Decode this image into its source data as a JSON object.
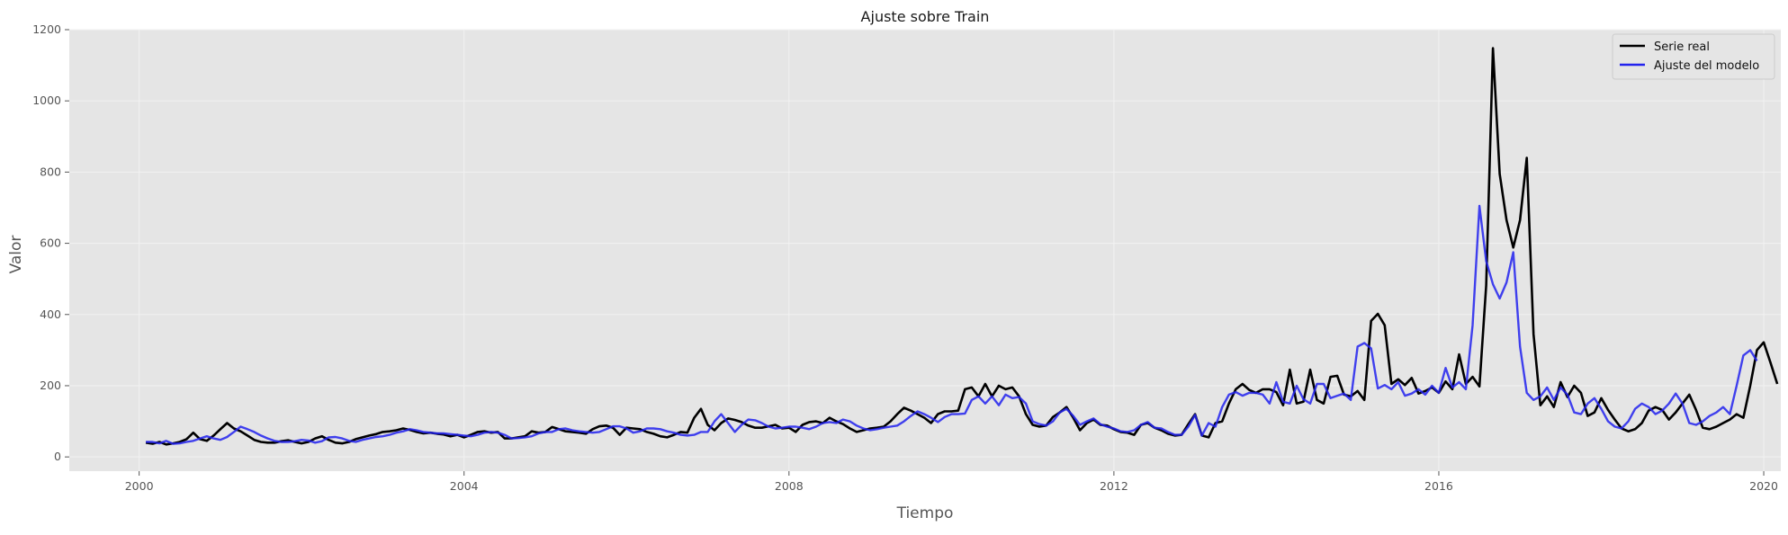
{
  "chart_data": {
    "type": "line",
    "title": "Ajuste sobre Train",
    "xlabel": "Tiempo",
    "ylabel": "Valor",
    "xlim": [
      1999.14,
      2020.21
    ],
    "ylim": [
      -40,
      1200
    ],
    "x_ticks": [
      2000,
      2004,
      2008,
      2012,
      2016,
      2020
    ],
    "x_tick_labels": [
      "2000",
      "2004",
      "2008",
      "2012",
      "2016",
      "2020"
    ],
    "y_ticks": [
      0,
      200,
      400,
      600,
      800,
      1000,
      1200
    ],
    "y_tick_labels": [
      "0",
      "200",
      "400",
      "600",
      "800",
      "1000",
      "1200"
    ],
    "grid": true,
    "legend_position": "top-right",
    "x_start": 2000.083,
    "x_step": 0.0833333,
    "series": [
      {
        "name": "Serie real",
        "color": "#000000",
        "values": [
          40,
          37,
          42,
          35,
          38,
          42,
          50,
          68,
          50,
          45,
          60,
          78,
          95,
          80,
          72,
          60,
          48,
          42,
          40,
          40,
          44,
          47,
          42,
          38,
          42,
          52,
          58,
          48,
          40,
          38,
          42,
          50,
          55,
          60,
          64,
          70,
          72,
          75,
          80,
          76,
          70,
          66,
          68,
          65,
          63,
          58,
          62,
          55,
          62,
          70,
          72,
          68,
          70,
          52,
          52,
          55,
          58,
          72,
          68,
          70,
          84,
          78,
          72,
          70,
          68,
          65,
          78,
          86,
          88,
          82,
          62,
          82,
          80,
          78,
          70,
          65,
          58,
          55,
          62,
          70,
          68,
          110,
          135,
          90,
          75,
          95,
          108,
          104,
          98,
          88,
          82,
          82,
          86,
          90,
          80,
          82,
          70,
          90,
          98,
          100,
          95,
          110,
          100,
          92,
          80,
          70,
          75,
          80,
          82,
          85,
          100,
          120,
          138,
          130,
          120,
          110,
          95,
          120,
          128,
          128,
          130,
          190,
          195,
          170,
          205,
          170,
          200,
          190,
          195,
          170,
          120,
          90,
          85,
          88,
          112,
          125,
          140,
          110,
          75,
          95,
          105,
          90,
          88,
          78,
          70,
          68,
          62,
          90,
          95,
          82,
          75,
          65,
          60,
          62,
          92,
          120,
          60,
          55,
          95,
          100,
          150,
          190,
          205,
          188,
          180,
          190,
          190,
          182,
          145,
          245,
          150,
          155,
          245,
          160,
          150,
          225,
          228,
          175,
          170,
          185,
          160,
          382,
          402,
          370,
          205,
          218,
          202,
          222,
          178,
          185,
          195,
          180,
          212,
          190,
          288,
          205,
          225,
          198,
          482,
          1148,
          795,
          665,
          588,
          665,
          840,
          345,
          145,
          170,
          140,
          210,
          168,
          200,
          180,
          115,
          125,
          165,
          132,
          105,
          80,
          72,
          78,
          95,
          130,
          140,
          132,
          105,
          125,
          150,
          175,
          132,
          82,
          78,
          85,
          95,
          105,
          120,
          110,
          200,
          300,
          322,
          265,
          205
        ]
      },
      {
        "name": "Ajuste del modelo",
        "color": "#2222ee",
        "values": [
          42,
          42,
          38,
          45,
          37,
          38,
          42,
          45,
          52,
          58,
          52,
          48,
          56,
          70,
          85,
          78,
          70,
          60,
          52,
          45,
          42,
          42,
          44,
          48,
          46,
          40,
          44,
          55,
          56,
          52,
          45,
          42,
          48,
          52,
          56,
          58,
          62,
          68,
          72,
          78,
          75,
          70,
          68,
          66,
          66,
          64,
          62,
          60,
          58,
          62,
          68,
          70,
          68,
          62,
          52,
          53,
          55,
          58,
          66,
          70,
          70,
          78,
          80,
          75,
          72,
          70,
          68,
          70,
          78,
          86,
          86,
          80,
          68,
          72,
          80,
          80,
          78,
          72,
          68,
          62,
          60,
          62,
          70,
          70,
          100,
          120,
          95,
          70,
          90,
          105,
          103,
          95,
          85,
          80,
          82,
          85,
          85,
          82,
          78,
          85,
          95,
          98,
          95,
          105,
          100,
          88,
          80,
          75,
          78,
          82,
          85,
          88,
          100,
          115,
          128,
          120,
          110,
          98,
          112,
          120,
          120,
          122,
          160,
          170,
          150,
          170,
          145,
          175,
          165,
          168,
          150,
          100,
          92,
          88,
          100,
          125,
          135,
          115,
          90,
          100,
          108,
          92,
          85,
          80,
          72,
          70,
          75,
          90,
          98,
          82,
          80,
          70,
          62,
          62,
          85,
          118,
          60,
          95,
          85,
          140,
          175,
          182,
          172,
          180,
          180,
          175,
          150,
          210,
          155,
          150,
          200,
          162,
          150,
          205,
          205,
          165,
          172,
          178,
          160,
          310,
          320,
          305,
          192,
          202,
          190,
          210,
          172,
          178,
          190,
          175,
          200,
          180,
          250,
          195,
          210,
          190,
          370,
          705,
          550,
          485,
          445,
          490,
          575,
          310,
          180,
          160,
          170,
          195,
          160,
          195,
          175,
          125,
          120,
          150,
          165,
          135,
          100,
          85,
          80,
          100,
          135,
          150,
          140,
          120,
          130,
          150,
          178,
          150,
          95,
          90,
          100,
          115,
          125,
          140,
          120,
          200,
          285,
          300,
          270
        ]
      }
    ]
  }
}
